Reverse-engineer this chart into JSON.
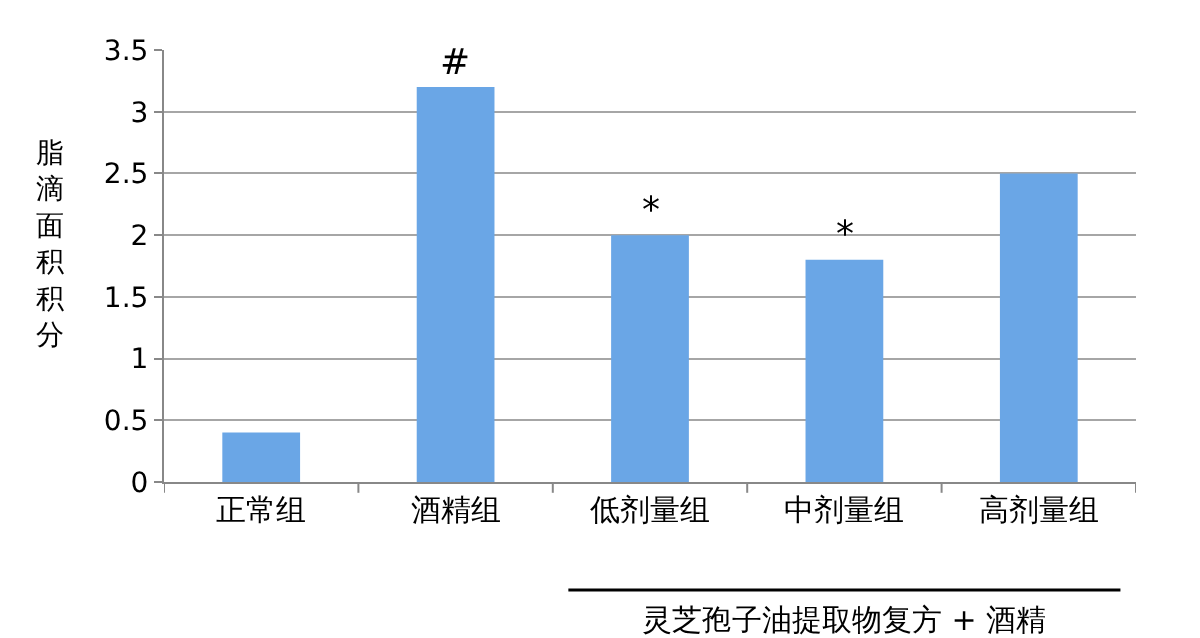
{
  "chart_data": {
    "type": "bar",
    "ylabel": "脂滴面积积分",
    "categories": [
      "正常组",
      "酒精组",
      "低剂量组",
      "中剂量组",
      "高剂量组"
    ],
    "values": [
      0.4,
      3.2,
      2.0,
      1.8,
      2.5
    ],
    "color": "#6aa6e6",
    "ylim": [
      0,
      3.5
    ],
    "yticks": [
      0,
      0.5,
      1,
      1.5,
      2,
      2.5,
      3,
      3.5
    ],
    "grid": "y",
    "legend": false,
    "annotations": [
      {
        "text": "#",
        "x": "酒精组",
        "y": 3.2
      },
      {
        "text": "*",
        "x": "低剂量组",
        "y": 2.0
      },
      {
        "text": "*",
        "x": "中剂量组",
        "y": 1.8
      },
      "灵芝孢子油提取物复方 + 酒精"
    ]
  }
}
